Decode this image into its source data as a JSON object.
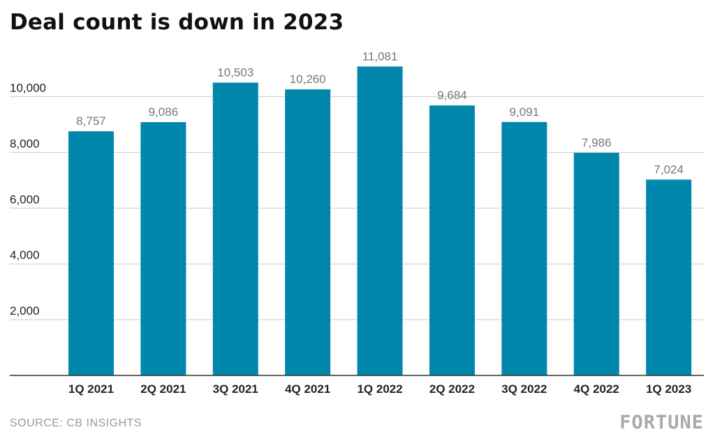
{
  "title": "Deal count is down in 2023",
  "source": "SOURCE: CB INSIGHTS",
  "brand": "FORTUNE",
  "colors": {
    "bar": "#0287ac",
    "grid": "#cccccc",
    "axis": "#333333"
  },
  "chart_data": {
    "type": "bar",
    "title": "Deal count is down in 2023",
    "categories": [
      "1Q 2021",
      "2Q 2021",
      "3Q 2021",
      "4Q 2021",
      "1Q 2022",
      "2Q 2022",
      "3Q 2022",
      "4Q 2022",
      "1Q 2023"
    ],
    "values": [
      8757,
      9086,
      10503,
      10260,
      11081,
      9684,
      9091,
      7986,
      7024
    ],
    "value_labels": [
      "8,757",
      "9,086",
      "10,503",
      "10,260",
      "11,081",
      "9,684",
      "9,091",
      "7,986",
      "7,024"
    ],
    "yticks": [
      2000,
      4000,
      6000,
      8000,
      10000
    ],
    "ytick_labels": [
      "2,000",
      "4,000",
      "6,000",
      "8,000",
      "10,000"
    ],
    "ylim": [
      0,
      12000
    ],
    "grid": true,
    "xlabel": "",
    "ylabel": ""
  }
}
